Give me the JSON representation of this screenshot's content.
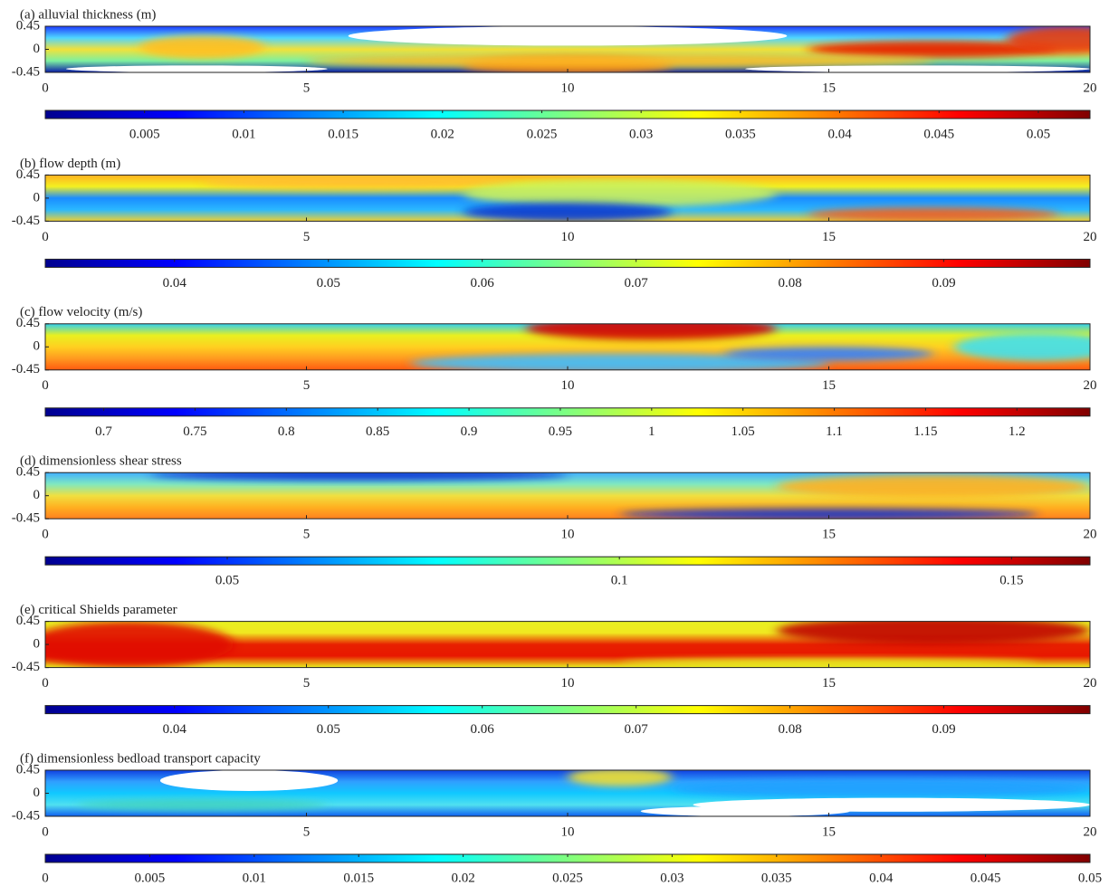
{
  "chart_data": [
    {
      "type": "heatmap",
      "title": "(a) alluvial thickness (m)",
      "colormap": "jet",
      "xlim": [
        0,
        20
      ],
      "xticks": [
        0,
        5,
        10,
        15,
        20
      ],
      "ylim": [
        -0.45,
        0.45
      ],
      "yticks": [
        0.45,
        0,
        -0.45
      ],
      "colorbar": {
        "clim": [
          0,
          0.0526
        ],
        "ticks": [
          0.005,
          0.01,
          0.015,
          0.02,
          0.025,
          0.03,
          0.035,
          0.04,
          0.045,
          0.05
        ]
      }
    },
    {
      "type": "heatmap",
      "title": "(b) flow depth (m)",
      "colormap": "jet",
      "xlim": [
        0,
        20
      ],
      "xticks": [
        0,
        5,
        10,
        15,
        20
      ],
      "ylim": [
        -0.45,
        0.45
      ],
      "yticks": [
        0.45,
        0,
        -0.45
      ],
      "colorbar": {
        "clim": [
          0.0316,
          0.0995
        ],
        "ticks": [
          0.04,
          0.05,
          0.06,
          0.07,
          0.08,
          0.09
        ]
      }
    },
    {
      "type": "heatmap",
      "title": "(c) flow velocity (m/s)",
      "colormap": "jet",
      "xlim": [
        0,
        20
      ],
      "xticks": [
        0,
        5,
        10,
        15,
        20
      ],
      "ylim": [
        -0.45,
        0.45
      ],
      "yticks": [
        0.45,
        0,
        -0.45
      ],
      "colorbar": {
        "clim": [
          0.668,
          1.24
        ],
        "ticks": [
          0.7,
          0.75,
          0.8,
          0.85,
          0.9,
          0.95,
          1,
          1.05,
          1.1,
          1.15,
          1.2
        ]
      }
    },
    {
      "type": "heatmap",
      "title": "(d) dimensionless shear stress",
      "colormap": "jet",
      "xlim": [
        0,
        20
      ],
      "xticks": [
        0,
        5,
        10,
        15,
        20
      ],
      "ylim": [
        -0.45,
        0.45
      ],
      "yticks": [
        0.45,
        0,
        -0.45
      ],
      "colorbar": {
        "clim": [
          0.0268,
          0.16
        ],
        "ticks": [
          0.05,
          0.1,
          0.15
        ]
      }
    },
    {
      "type": "heatmap",
      "title": "(e) critical Shields parameter",
      "colormap": "jet",
      "xlim": [
        0,
        20
      ],
      "xticks": [
        0,
        5,
        10,
        15,
        20
      ],
      "ylim": [
        -0.45,
        0.45
      ],
      "yticks": [
        0.45,
        0,
        -0.45
      ],
      "colorbar": {
        "clim": [
          0.0316,
          0.0995
        ],
        "ticks": [
          0.04,
          0.05,
          0.06,
          0.07,
          0.08,
          0.09
        ]
      }
    },
    {
      "type": "heatmap",
      "title": "(f) dimensionless bedload transport capacity",
      "colormap": "jet",
      "xlim": [
        0,
        20
      ],
      "xticks": [
        0,
        5,
        10,
        15,
        20
      ],
      "ylim": [
        -0.45,
        0.45
      ],
      "yticks": [
        0.45,
        0,
        -0.45
      ],
      "colorbar": {
        "clim": [
          0,
          0.05
        ],
        "ticks": [
          0,
          0.005,
          0.01,
          0.015,
          0.02,
          0.025,
          0.03,
          0.035,
          0.04,
          0.045,
          0.05
        ]
      }
    }
  ]
}
